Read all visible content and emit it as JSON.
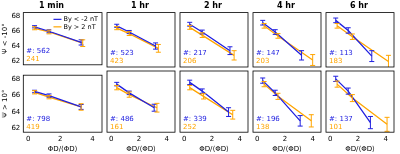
{
  "chart_data": [
    {
      "type": "line",
      "title": "1 min",
      "y_label": "Ψ < -10°",
      "xlim": [
        -0.3,
        4.6
      ],
      "ylim": [
        61.5,
        68.5
      ],
      "xticks": [
        0,
        2,
        4
      ],
      "yticks": [
        62,
        64,
        66,
        68
      ],
      "tick_labels": "y",
      "grid": false,
      "legend": "upper right",
      "marker": "none",
      "series": [
        {
          "name": "By < -2 nT",
          "color": "#2020e0",
          "x": [
            0.4,
            1.3,
            3.3
          ],
          "values": [
            66.6,
            66.0,
            64.5
          ],
          "errors": [
            0.15,
            0.2,
            0.35
          ]
        },
        {
          "name": "By > 2 nT",
          "color": "#ffa500",
          "x": [
            0.4,
            1.3,
            3.4
          ],
          "values": [
            66.4,
            65.9,
            64.4
          ],
          "errors": [
            0.2,
            0.25,
            0.45
          ]
        }
      ],
      "annotations": [
        {
          "text": "#: 562",
          "color": "#2020e0"
        },
        {
          "text": "241",
          "color": "#ffa500"
        }
      ]
    },
    {
      "type": "line",
      "title": "1 hr",
      "xlim": [
        -0.3,
        4.6
      ],
      "ylim": [
        61.5,
        68.5
      ],
      "xticks": [
        0,
        2,
        4
      ],
      "yticks": [
        62,
        64,
        66,
        68
      ],
      "tick_labels": false,
      "grid": false,
      "marker": "none",
      "series": [
        {
          "name": "By < -2 nT",
          "color": "#2020e0",
          "x": [
            0.4,
            1.3,
            3.2
          ],
          "values": [
            66.8,
            66.0,
            64.2
          ],
          "errors": [
            0.2,
            0.2,
            0.4
          ]
        },
        {
          "name": "By > 2 nT",
          "color": "#ffa500",
          "x": [
            0.4,
            1.3,
            3.4
          ],
          "values": [
            66.5,
            65.8,
            63.9
          ],
          "errors": [
            0.2,
            0.25,
            0.5
          ]
        }
      ],
      "annotations": [
        {
          "text": "#: 523",
          "color": "#2020e0"
        },
        {
          "text": "423",
          "color": "#ffa500"
        }
      ]
    },
    {
      "type": "line",
      "title": "2 hr",
      "xlim": [
        -0.3,
        4.6
      ],
      "ylim": [
        61.5,
        68.5
      ],
      "xticks": [
        0,
        2,
        4
      ],
      "yticks": [
        62,
        64,
        66,
        68
      ],
      "tick_labels": false,
      "grid": false,
      "marker": "none",
      "series": [
        {
          "name": "By < -2 nT",
          "color": "#2020e0",
          "x": [
            0.4,
            1.3,
            3.3
          ],
          "values": [
            67.0,
            66.0,
            63.6
          ],
          "errors": [
            0.25,
            0.25,
            0.5
          ]
        },
        {
          "name": "By > 2 nT",
          "color": "#ffa500",
          "x": [
            0.4,
            1.3,
            3.6
          ],
          "values": [
            66.6,
            65.6,
            63.0
          ],
          "errors": [
            0.25,
            0.3,
            0.6
          ]
        }
      ],
      "annotations": [
        {
          "text": "#: 217",
          "color": "#2020e0"
        },
        {
          "text": "206",
          "color": "#ffa500"
        }
      ]
    },
    {
      "type": "line",
      "title": "4 hr",
      "xlim": [
        -0.3,
        4.6
      ],
      "ylim": [
        61.5,
        68.5
      ],
      "xticks": [
        0,
        2,
        4
      ],
      "yticks": [
        62,
        64,
        66,
        68
      ],
      "tick_labels": false,
      "grid": false,
      "marker": "none",
      "series": [
        {
          "name": "By < -2 nT",
          "color": "#2020e0",
          "x": [
            0.4,
            1.3,
            3.2
          ],
          "values": [
            67.2,
            66.0,
            63.0
          ],
          "errors": [
            0.3,
            0.3,
            0.6
          ]
        },
        {
          "name": "By > 2 nT",
          "color": "#ffa500",
          "x": [
            0.5,
            1.5,
            4.0
          ],
          "values": [
            66.8,
            65.5,
            62.4
          ],
          "errors": [
            0.3,
            0.3,
            0.7
          ]
        }
      ],
      "annotations": [
        {
          "text": "#: 147",
          "color": "#2020e0"
        },
        {
          "text": "203",
          "color": "#ffa500"
        }
      ]
    },
    {
      "type": "line",
      "title": "6 hr",
      "xlim": [
        -0.3,
        4.6
      ],
      "ylim": [
        61.5,
        68.5
      ],
      "xticks": [
        0,
        2,
        4
      ],
      "yticks": [
        62,
        64,
        66,
        68
      ],
      "tick_labels": false,
      "grid": false,
      "marker": "none",
      "series": [
        {
          "name": "By < -2 nT",
          "color": "#2020e0",
          "x": [
            0.4,
            1.3,
            3.0
          ],
          "values": [
            67.5,
            66.2,
            62.9
          ],
          "errors": [
            0.3,
            0.35,
            0.7
          ]
        },
        {
          "name": "By > 2 nT",
          "color": "#ffa500",
          "x": [
            0.5,
            1.6,
            4.2
          ],
          "values": [
            66.8,
            65.4,
            62.2
          ],
          "errors": [
            0.3,
            0.35,
            0.8
          ]
        }
      ],
      "annotations": [
        {
          "text": "#: 113",
          "color": "#2020e0"
        },
        {
          "text": "183",
          "color": "#ffa500"
        }
      ]
    },
    {
      "type": "line",
      "y_label": "Ψ > 10°",
      "x_label": "ΦD/⟨ΦD⟩",
      "xlim": [
        -0.3,
        4.6
      ],
      "ylim": [
        61.5,
        68.5
      ],
      "xticks": [
        0,
        2,
        4
      ],
      "yticks": [
        62,
        64,
        66,
        68
      ],
      "tick_labels": true,
      "grid": false,
      "marker": "none",
      "series": [
        {
          "name": "By < -2 nT",
          "color": "#2020e0",
          "x": [
            0.4,
            1.3,
            3.3
          ],
          "values": [
            66.5,
            66.0,
            64.6
          ],
          "errors": [
            0.15,
            0.2,
            0.3
          ]
        },
        {
          "name": "By > 2 nT",
          "color": "#ffa500",
          "x": [
            0.4,
            1.3,
            3.3
          ],
          "values": [
            66.4,
            65.8,
            64.6
          ],
          "errors": [
            0.2,
            0.2,
            0.4
          ]
        }
      ],
      "annotations": [
        {
          "text": "#: 798",
          "color": "#2020e0"
        },
        {
          "text": "419",
          "color": "#ffa500"
        }
      ]
    },
    {
      "type": "line",
      "x_label": "ΦD/⟨ΦD⟩",
      "xlim": [
        -0.3,
        4.6
      ],
      "ylim": [
        61.5,
        68.5
      ],
      "xticks": [
        0,
        2,
        4
      ],
      "yticks": [
        62,
        64,
        66,
        68
      ],
      "tick_labels": "x",
      "grid": false,
      "marker": "none",
      "series": [
        {
          "name": "By < -2 nT",
          "color": "#2020e0",
          "x": [
            0.4,
            1.3,
            3.1
          ],
          "values": [
            67.0,
            66.0,
            64.3
          ],
          "errors": [
            0.2,
            0.2,
            0.4
          ]
        },
        {
          "name": "By > 2 nT",
          "color": "#ffa500",
          "x": [
            0.4,
            1.3,
            3.3
          ],
          "values": [
            66.6,
            65.8,
            64.3
          ],
          "errors": [
            0.25,
            0.3,
            0.5
          ]
        }
      ],
      "annotations": [
        {
          "text": "#: 486",
          "color": "#2020e0"
        },
        {
          "text": "161",
          "color": "#ffa500"
        }
      ]
    },
    {
      "type": "line",
      "x_label": "ΦD/⟨ΦD⟩",
      "xlim": [
        -0.3,
        4.6
      ],
      "ylim": [
        61.5,
        68.5
      ],
      "xticks": [
        0,
        2,
        4
      ],
      "yticks": [
        62,
        64,
        66,
        68
      ],
      "tick_labels": "x",
      "grid": false,
      "marker": "none",
      "series": [
        {
          "name": "By < -2 nT",
          "color": "#2020e0",
          "x": [
            0.4,
            1.3,
            3.2
          ],
          "values": [
            67.2,
            66.2,
            63.8
          ],
          "errors": [
            0.25,
            0.25,
            0.5
          ]
        },
        {
          "name": "By > 2 nT",
          "color": "#ffa500",
          "x": [
            0.4,
            1.4,
            3.5
          ],
          "values": [
            66.6,
            65.6,
            63.5
          ],
          "errors": [
            0.25,
            0.3,
            0.5
          ]
        }
      ],
      "annotations": [
        {
          "text": "#: 339",
          "color": "#2020e0"
        },
        {
          "text": "252",
          "color": "#ffa500"
        }
      ]
    },
    {
      "type": "line",
      "x_label": "ΦD/⟨ΦD⟩",
      "xlim": [
        -0.3,
        4.6
      ],
      "ylim": [
        61.5,
        68.5
      ],
      "xticks": [
        0,
        2,
        4
      ],
      "yticks": [
        62,
        64,
        66,
        68
      ],
      "tick_labels": "x",
      "grid": false,
      "marker": "none",
      "series": [
        {
          "name": "By < -2 nT",
          "color": "#2020e0",
          "x": [
            0.4,
            1.3,
            3.1
          ],
          "values": [
            67.4,
            66.0,
            62.8
          ],
          "errors": [
            0.3,
            0.3,
            0.6
          ]
        },
        {
          "name": "By > 2 nT",
          "color": "#ffa500",
          "x": [
            0.5,
            1.5,
            3.9
          ],
          "values": [
            67.0,
            65.6,
            62.8
          ],
          "errors": [
            0.3,
            0.35,
            0.7
          ]
        }
      ],
      "annotations": [
        {
          "text": "#: 196",
          "color": "#2020e0"
        },
        {
          "text": "138",
          "color": "#ffa500"
        }
      ]
    },
    {
      "type": "line",
      "x_label": "ΦD/⟨ΦD⟩",
      "xlim": [
        -0.3,
        4.6
      ],
      "ylim": [
        61.5,
        68.5
      ],
      "xticks": [
        0,
        2,
        4
      ],
      "yticks": [
        62,
        64,
        66,
        68
      ],
      "tick_labels": "x",
      "grid": false,
      "marker": "none",
      "series": [
        {
          "name": "By < -2 nT",
          "color": "#2020e0",
          "x": [
            0.4,
            1.3,
            2.9
          ],
          "values": [
            67.6,
            66.2,
            62.6
          ],
          "errors": [
            0.3,
            0.35,
            0.7
          ]
        },
        {
          "name": "By > 2 nT",
          "color": "#ffa500",
          "x": [
            0.5,
            1.6,
            4.1
          ],
          "values": [
            67.0,
            65.4,
            62.4
          ],
          "errors": [
            0.35,
            0.4,
            0.8
          ]
        }
      ],
      "annotations": [
        {
          "text": "#: 137",
          "color": "#2020e0"
        },
        {
          "text": "101",
          "color": "#ffa500"
        }
      ]
    }
  ]
}
